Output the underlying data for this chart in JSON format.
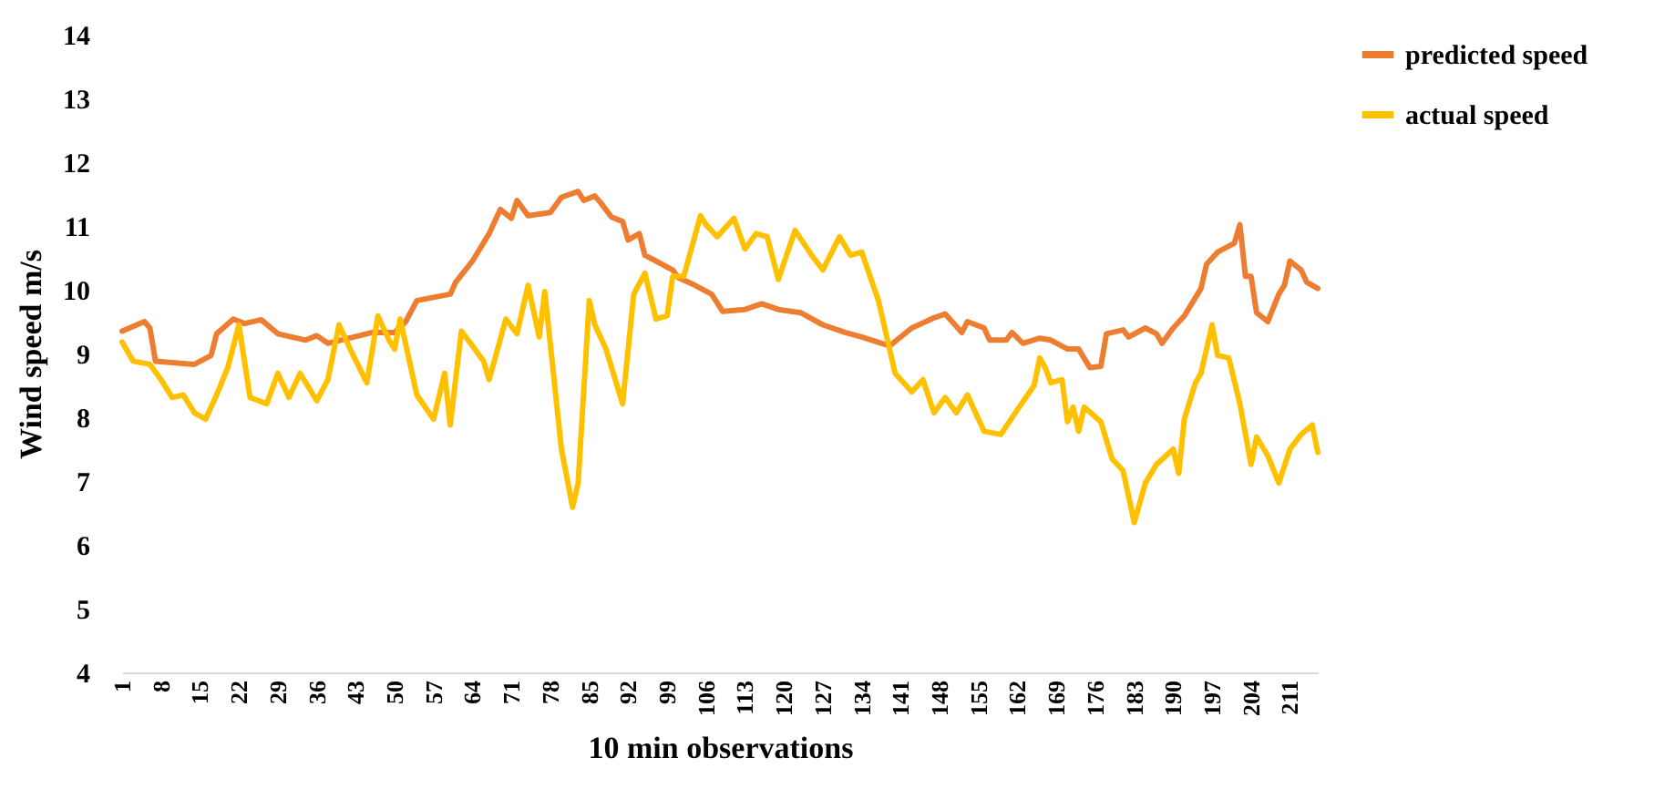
{
  "chart_data": {
    "type": "line",
    "xlabel": "10 min observations",
    "ylabel": "Wind speed  m/s",
    "xlim": [
      1,
      216
    ],
    "xticks": [
      1,
      8,
      15,
      22,
      29,
      36,
      43,
      50,
      57,
      64,
      71,
      78,
      85,
      92,
      99,
      106,
      113,
      120,
      127,
      134,
      141,
      148,
      155,
      162,
      169,
      176,
      183,
      190,
      197,
      204,
      211
    ],
    "ylim": [
      4,
      14
    ],
    "yticks": [
      4,
      5,
      6,
      7,
      8,
      9,
      10,
      11,
      12,
      13,
      14
    ],
    "legend": "right",
    "series": [
      {
        "name": "predicted speed",
        "color": "#ed7d31",
        "x": [
          1,
          5,
          6,
          7,
          14,
          17,
          18,
          21,
          23,
          26,
          29,
          34,
          36,
          38,
          46,
          50,
          52,
          54,
          57,
          60,
          61,
          64,
          67,
          69,
          71,
          72,
          74,
          78,
          80,
          83,
          84,
          86,
          87,
          89,
          91,
          92,
          94,
          95,
          97,
          100,
          101,
          104,
          107,
          109,
          113,
          116,
          119,
          123,
          127,
          131,
          134,
          139,
          143,
          147,
          149,
          152,
          153,
          156,
          157,
          160,
          161,
          163,
          166,
          168,
          171,
          173,
          175,
          177,
          178,
          181,
          182,
          185,
          187,
          188,
          190,
          192,
          195,
          196,
          198,
          201,
          202,
          203,
          204,
          205,
          207,
          209,
          210,
          211,
          213,
          214,
          216
        ],
        "values": [
          9.35,
          9.5,
          9.4,
          8.88,
          8.83,
          8.97,
          9.31,
          9.54,
          9.47,
          9.53,
          9.31,
          9.21,
          9.28,
          9.16,
          9.33,
          9.33,
          9.5,
          9.83,
          9.88,
          9.93,
          10.12,
          10.45,
          10.88,
          11.26,
          11.12,
          11.4,
          11.16,
          11.21,
          11.45,
          11.54,
          11.4,
          11.47,
          11.37,
          11.14,
          11.07,
          10.78,
          10.88,
          10.54,
          10.45,
          10.31,
          10.19,
          10.07,
          9.93,
          9.66,
          9.69,
          9.78,
          9.69,
          9.64,
          9.45,
          9.33,
          9.26,
          9.12,
          9.4,
          9.56,
          9.62,
          9.33,
          9.5,
          9.4,
          9.21,
          9.21,
          9.33,
          9.16,
          9.24,
          9.21,
          9.07,
          9.07,
          8.78,
          8.8,
          9.31,
          9.37,
          9.26,
          9.4,
          9.31,
          9.16,
          9.4,
          9.59,
          10.02,
          10.4,
          10.59,
          10.73,
          11.02,
          10.21,
          10.21,
          9.64,
          9.5,
          9.93,
          10.07,
          10.45,
          10.31,
          10.12,
          10.02
        ]
      },
      {
        "name": "actual speed",
        "color": "#ffc000",
        "x": [
          1,
          3,
          6,
          8,
          10,
          12,
          14,
          16,
          18,
          20,
          22,
          24,
          27,
          29,
          31,
          33,
          36,
          38,
          40,
          42,
          45,
          47,
          49,
          50,
          51,
          54,
          57,
          59,
          60,
          62,
          64,
          66,
          67,
          70,
          72,
          74,
          76,
          77,
          80,
          82,
          83,
          85,
          86,
          88,
          91,
          93,
          95,
          97,
          99,
          100,
          102,
          105,
          106,
          108,
          111,
          113,
          115,
          117,
          119,
          122,
          125,
          127,
          130,
          132,
          134,
          137,
          140,
          143,
          145,
          147,
          149,
          151,
          153,
          156,
          159,
          162,
          165,
          166,
          167,
          168,
          170,
          171,
          172,
          173,
          174,
          177,
          179,
          181,
          183,
          185,
          187,
          190,
          191,
          192,
          194,
          195,
          197,
          198,
          200,
          202,
          204,
          205,
          207,
          209,
          211,
          213,
          215,
          216
        ],
        "values": [
          9.18,
          8.88,
          8.83,
          8.59,
          8.31,
          8.35,
          8.07,
          7.97,
          8.35,
          8.78,
          9.45,
          8.31,
          8.21,
          8.69,
          8.31,
          8.69,
          8.26,
          8.59,
          9.45,
          9.07,
          8.54,
          9.59,
          9.21,
          9.07,
          9.54,
          8.35,
          7.97,
          8.69,
          7.88,
          9.35,
          9.12,
          8.88,
          8.59,
          9.54,
          9.31,
          10.07,
          9.26,
          9.97,
          7.5,
          6.59,
          6.97,
          9.83,
          9.45,
          9.07,
          8.21,
          9.93,
          10.26,
          9.54,
          9.59,
          10.21,
          10.21,
          11.16,
          11.02,
          10.83,
          11.12,
          10.64,
          10.88,
          10.83,
          10.16,
          10.93,
          10.54,
          10.31,
          10.83,
          10.54,
          10.59,
          9.83,
          8.69,
          8.4,
          8.59,
          8.07,
          8.31,
          8.07,
          8.35,
          7.78,
          7.73,
          8.12,
          8.5,
          8.93,
          8.78,
          8.54,
          8.59,
          7.93,
          8.16,
          7.78,
          8.16,
          7.93,
          7.35,
          7.16,
          6.35,
          6.97,
          7.26,
          7.5,
          7.12,
          7.97,
          8.54,
          8.69,
          9.45,
          8.97,
          8.93,
          8.21,
          7.26,
          7.69,
          7.4,
          6.97,
          7.5,
          7.73,
          7.88,
          7.45
        ]
      }
    ]
  }
}
